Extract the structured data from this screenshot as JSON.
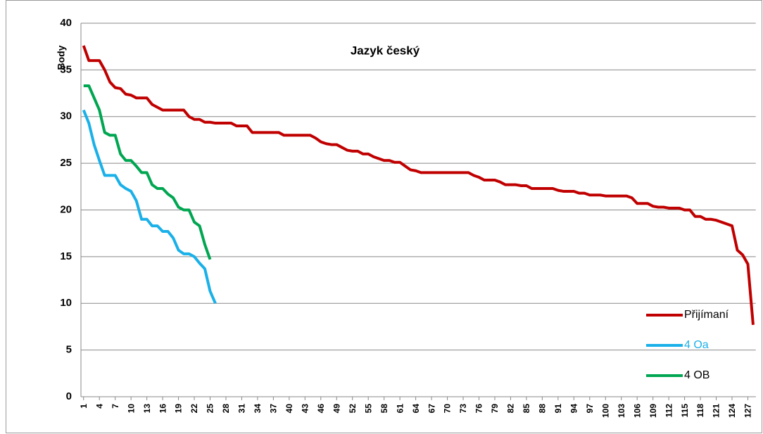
{
  "chart_data": {
    "type": "line",
    "title": "Jazyk český",
    "y_label": "Body",
    "categories": [
      1,
      null,
      null,
      4,
      null,
      null,
      7,
      null,
      null,
      10,
      null,
      null,
      13,
      null,
      null,
      16,
      null,
      null,
      19,
      null,
      null,
      22,
      null,
      null,
      25,
      null,
      null,
      28,
      null,
      null,
      31,
      null,
      null,
      34,
      null,
      null,
      37,
      null,
      null,
      40,
      null,
      null,
      43,
      null,
      null,
      46,
      null,
      null,
      49,
      null,
      null,
      52,
      null,
      null,
      55,
      null,
      null,
      58,
      null,
      null,
      61,
      null,
      null,
      64,
      null,
      null,
      67,
      null,
      null,
      70,
      null,
      null,
      73,
      null,
      null,
      76,
      null,
      null,
      79,
      null,
      null,
      82,
      null,
      null,
      85,
      null,
      null,
      88,
      null,
      null,
      91,
      null,
      null,
      94,
      null,
      null,
      97,
      null,
      null,
      100,
      null,
      null,
      103,
      null,
      null,
      106,
      null,
      null,
      109,
      null,
      null,
      112,
      null,
      null,
      115,
      null,
      null,
      118,
      null,
      null,
      121,
      null,
      null,
      124,
      null,
      null,
      127,
      null
    ],
    "series": [
      {
        "name": "Přijímaní",
        "color": "#c00000",
        "values": [
          37.6,
          36,
          36,
          36,
          35,
          33.7,
          33.1,
          33,
          32.4,
          32.3,
          32,
          32,
          32,
          31.3,
          31,
          30.7,
          30.7,
          30.7,
          30.7,
          30.7,
          30,
          29.7,
          29.7,
          29.4,
          29.4,
          29.3,
          29.3,
          29.3,
          29.3,
          29,
          29,
          29,
          28.3,
          28.3,
          28.3,
          28.3,
          28.3,
          28.3,
          28,
          28,
          28,
          28,
          28,
          28,
          27.7,
          27.3,
          27.1,
          27,
          27,
          26.7,
          26.4,
          26.3,
          26.3,
          26,
          26,
          25.7,
          25.5,
          25.3,
          25.3,
          25.1,
          25.1,
          24.7,
          24.3,
          24.2,
          24,
          24,
          24,
          24,
          24,
          24,
          24,
          24,
          24,
          24,
          23.7,
          23.5,
          23.2,
          23.2,
          23.2,
          23,
          22.7,
          22.7,
          22.7,
          22.6,
          22.6,
          22.3,
          22.3,
          22.3,
          22.3,
          22.3,
          22.1,
          22,
          22,
          22,
          21.8,
          21.8,
          21.6,
          21.6,
          21.6,
          21.5,
          21.5,
          21.5,
          21.5,
          21.5,
          21.3,
          20.7,
          20.7,
          20.7,
          20.4,
          20.3,
          20.3,
          20.2,
          20.2,
          20.2,
          20,
          20,
          19.3,
          19.3,
          19,
          19,
          18.9,
          18.7,
          18.5,
          18.3,
          15.7,
          15.2,
          14.2,
          7.7
        ]
      },
      {
        "name": "4 Oa",
        "color": "#1ab0e8",
        "values": [
          30.7,
          29.3,
          27,
          25.3,
          23.7,
          23.7,
          23.7,
          22.7,
          22.3,
          22,
          21,
          19,
          19,
          18.3,
          18.3,
          17.7,
          17.7,
          17,
          15.7,
          15.3,
          15.3,
          15,
          14.3,
          13.7,
          11.3,
          10,
          null,
          null,
          null,
          null,
          null,
          null,
          null,
          null,
          null,
          null,
          null,
          null,
          null,
          null,
          null,
          null,
          null,
          null,
          null,
          null,
          null,
          null,
          null,
          null,
          null,
          null,
          null,
          null,
          null,
          null,
          null,
          null,
          null,
          null,
          null,
          null,
          null,
          null,
          null,
          null,
          null,
          null,
          null,
          null,
          null,
          null,
          null,
          null,
          null,
          null,
          null,
          null,
          null,
          null,
          null,
          null,
          null,
          null,
          null,
          null,
          null,
          null,
          null,
          null,
          null,
          null,
          null,
          null,
          null,
          null,
          null,
          null,
          null,
          null,
          null,
          null,
          null,
          null,
          null,
          null,
          null,
          null,
          null,
          null,
          null,
          null,
          null,
          null,
          null,
          null,
          null,
          null,
          null,
          null,
          null,
          null,
          null,
          null,
          null,
          null,
          null,
          null
        ]
      },
      {
        "name": "4 OB",
        "color": "#00a651",
        "values": [
          33.3,
          33.3,
          32,
          30.7,
          28.3,
          28,
          28,
          26,
          25.3,
          25.3,
          24.7,
          24,
          24,
          22.7,
          22.3,
          22.3,
          21.7,
          21.3,
          20.3,
          20,
          20,
          18.7,
          18.3,
          16.3,
          14.7,
          null,
          null,
          null,
          null,
          null,
          null,
          null,
          null,
          null,
          null,
          null,
          null,
          null,
          null,
          null,
          null,
          null,
          null,
          null,
          null,
          null,
          null,
          null,
          null,
          null,
          null,
          null,
          null,
          null,
          null,
          null,
          null,
          null,
          null,
          null,
          null,
          null,
          null,
          null,
          null,
          null,
          null,
          null,
          null,
          null,
          null,
          null,
          null,
          null,
          null,
          null,
          null,
          null,
          null,
          null,
          null,
          null,
          null,
          null,
          null,
          null,
          null,
          null,
          null,
          null,
          null,
          null,
          null,
          null,
          null,
          null,
          null,
          null,
          null,
          null,
          null,
          null,
          null,
          null,
          null,
          null,
          null,
          null,
          null,
          null,
          null,
          null,
          null,
          null,
          null,
          null,
          null,
          null,
          null,
          null,
          null,
          null,
          null,
          null,
          null,
          null,
          null,
          null
        ]
      }
    ],
    "ylim": [
      0,
      40
    ],
    "yticks": [
      0,
      5,
      10,
      15,
      20,
      25,
      30,
      35,
      40
    ],
    "grid": true
  }
}
